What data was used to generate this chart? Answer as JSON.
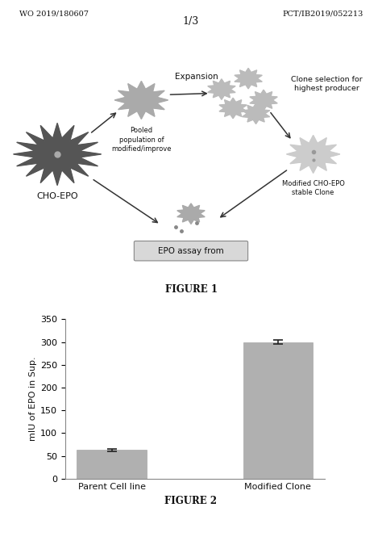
{
  "header_left": "WO 2019/180607",
  "header_right": "PCT/IB2019/052213",
  "page_number": "1/3",
  "figure1_label": "FIGURE 1",
  "figure2_label": "FIGURE 2",
  "bar_categories": [
    "Parent Cell line",
    "Modified Clone"
  ],
  "bar_values": [
    63,
    300
  ],
  "bar_errors": [
    3,
    5
  ],
  "bar_color": "#b0b0b0",
  "bar_error_color": "#222222",
  "ylabel": "mIU of EPO in Sup.",
  "ylim": [
    0,
    350
  ],
  "yticks": [
    0,
    50,
    100,
    150,
    200,
    250,
    300,
    350
  ],
  "background_color": "#ffffff",
  "text_color": "#111111",
  "fig1_labels": {
    "cho_epo": "CHO-EPO",
    "pooled": "Pooled\npopulation of\nmodified/improve",
    "expansion": "Expansion",
    "clone_selection": "Clone selection for\nhighest producer",
    "modified_clone": "Modified CHO-EPO\nstable Clone",
    "epo_assay": "EPO assay from"
  },
  "epo_box_color": "#d8d8d8",
  "diagram_text_color": "#333333",
  "cho_color": "#555555",
  "pooled_color": "#aaaaaa",
  "small_cell_color": "#bbbbbb",
  "modified_clone_color": "#cccccc",
  "epo_assay_cell_color": "#aaaaaa"
}
